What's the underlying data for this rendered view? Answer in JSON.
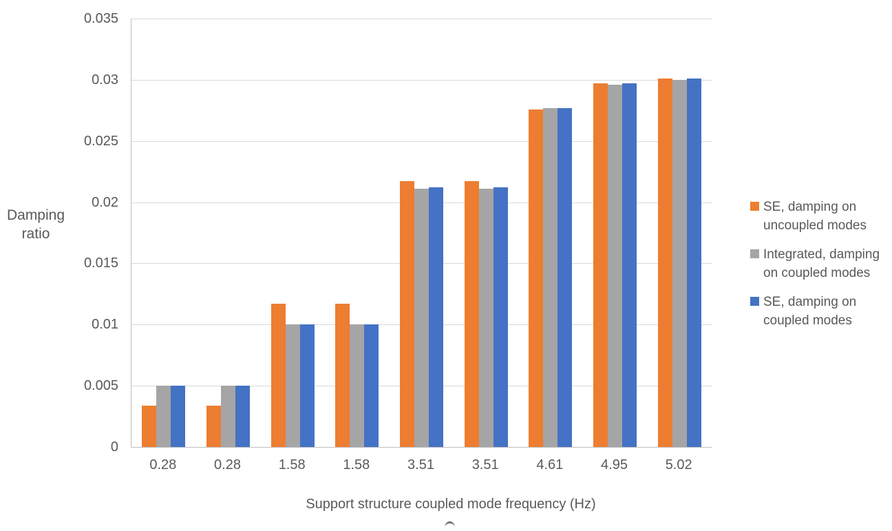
{
  "chart_data": {
    "type": "bar",
    "title": "",
    "xlabel": "Support structure coupled mode frequency (Hz)",
    "ylabel": "Damping ratio",
    "categories": [
      "0.28",
      "0.28",
      "1.58",
      "1.58",
      "3.51",
      "3.51",
      "4.61",
      "4.95",
      "5.02"
    ],
    "series": [
      {
        "name": "SE, damping on uncoupled modes",
        "color": "#ED7D31",
        "values": [
          0.0034,
          0.0034,
          0.0117,
          0.0117,
          0.0217,
          0.0217,
          0.0276,
          0.0297,
          0.0301
        ]
      },
      {
        "name": "Integrated, damping on coupled modes",
        "color": "#A5A5A5",
        "values": [
          0.005,
          0.005,
          0.01,
          0.01,
          0.0211,
          0.0211,
          0.0277,
          0.0296,
          0.03
        ]
      },
      {
        "name": "SE, damping on coupled modes",
        "color": "#4472C4",
        "values": [
          0.005,
          0.005,
          0.01,
          0.01,
          0.0212,
          0.0212,
          0.0277,
          0.0297,
          0.0301
        ]
      }
    ],
    "ylim": [
      0,
      0.035
    ],
    "ytick_step": 0.005,
    "yticks": [
      "0",
      "0.005",
      "0.01",
      "0.015",
      "0.02",
      "0.025",
      "0.03",
      "0.035"
    ],
    "grid": true,
    "legend_position": "right"
  },
  "colors": {
    "gridline": "#d9d9d9",
    "axis_line": "#bfbfbf",
    "text": "#595959",
    "background": "#ffffff"
  }
}
